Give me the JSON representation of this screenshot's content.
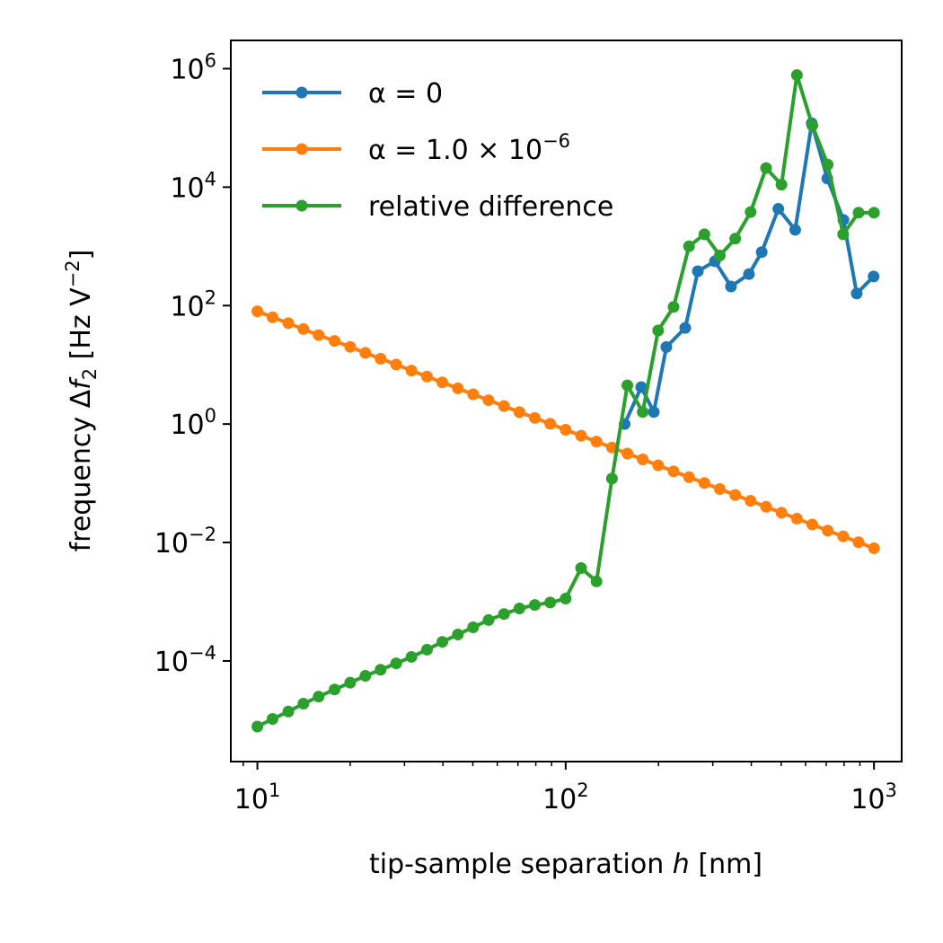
{
  "chart_data": {
    "type": "line",
    "xlabel_text": "tip-sample separation",
    "xlabel_var": "h",
    "xlabel_unit": "[nm]",
    "ylabel_text": "frequency Δ",
    "ylabel_var": "f",
    "ylabel_sub": "2",
    "ylabel_unit_a": "[Hz V",
    "ylabel_unit_sup": "−2",
    "ylabel_unit_b": "]",
    "xscale": "log",
    "yscale": "log",
    "xlim": [
      8.2,
      1230
    ],
    "ylim": [
      2e-06,
      3000000.0
    ],
    "grid": false,
    "legend_position": "upper-left",
    "x_ticks": [
      {
        "value": 10,
        "base": "10",
        "exp": "1"
      },
      {
        "value": 100,
        "base": "10",
        "exp": "2"
      },
      {
        "value": 1000,
        "base": "10",
        "exp": "3"
      }
    ],
    "y_ticks": [
      {
        "value": 0.0001,
        "base": "10",
        "exp": "−4"
      },
      {
        "value": 0.01,
        "base": "10",
        "exp": "−2"
      },
      {
        "value": 1,
        "base": "10",
        "exp": "0"
      },
      {
        "value": 100,
        "base": "10",
        "exp": "2"
      },
      {
        "value": 10000,
        "base": "10",
        "exp": "4"
      },
      {
        "value": 1000000,
        "base": "10",
        "exp": "6"
      }
    ],
    "series": [
      {
        "name_parts": [
          "α = 0"
        ],
        "name_sup": "",
        "color": "#1f77b4",
        "x": [
          155.3,
          175.8,
          193.1,
          212.1,
          244.2,
          268.3,
          304.9,
          343.7,
          393.1,
          432.4,
          489.5,
          555.2,
          628.3,
          705.8,
          795.9,
          879.1,
          997.4
        ],
        "y": [
          1.0,
          4.2,
          1.6,
          20,
          42,
          380,
          560,
          210,
          340,
          800,
          4300,
          1900,
          120000,
          14000,
          2800,
          160,
          310
        ]
      },
      {
        "name_parts": [
          "α = 1.0 × 10"
        ],
        "name_sup": "−6",
        "color": "#ff7f0e",
        "x": [
          10.0,
          11.2,
          12.6,
          14.1,
          15.8,
          17.8,
          20.0,
          22.4,
          25.1,
          28.2,
          31.6,
          35.5,
          39.8,
          44.7,
          50.1,
          56.2,
          63.1,
          70.8,
          79.4,
          89.1,
          100.0,
          112.2,
          125.9,
          141.3,
          158.5,
          177.8,
          199.5,
          223.9,
          251.2,
          281.8,
          316.2,
          354.8,
          398.1,
          446.7,
          501.2,
          562.3,
          631.0,
          707.9,
          794.3,
          891.3,
          1000.0
        ],
        "y": [
          80.0,
          63.5,
          50.5,
          40.1,
          31.8,
          25.3,
          20.1,
          15.9,
          12.7,
          10.1,
          8.0,
          6.35,
          5.05,
          4.01,
          3.18,
          2.53,
          2.01,
          1.59,
          1.27,
          1.01,
          0.8,
          0.635,
          0.505,
          0.401,
          0.318,
          0.253,
          0.201,
          0.159,
          0.127,
          0.101,
          0.08,
          0.0635,
          0.0505,
          0.0401,
          0.0318,
          0.0253,
          0.0201,
          0.0159,
          0.0127,
          0.0101,
          0.008
        ]
      },
      {
        "name_parts": [
          "relative difference"
        ],
        "name_sup": "",
        "color": "#2ca02c",
        "x": [
          10.0,
          11.2,
          12.6,
          14.1,
          15.8,
          17.8,
          20.0,
          22.4,
          25.1,
          28.2,
          31.6,
          35.5,
          39.8,
          44.7,
          50.1,
          56.2,
          63.1,
          70.8,
          79.4,
          89.1,
          100.0,
          112.2,
          125.9,
          141.3,
          158.5,
          177.8,
          199.5,
          223.9,
          251.2,
          281.8,
          316.2,
          354.8,
          398.1,
          446.7,
          501.2,
          562.3,
          631.0,
          707.9,
          794.3,
          891.3,
          1000.0
        ],
        "y": [
          7.8e-06,
          1.05e-05,
          1.4e-05,
          1.9e-05,
          2.5e-05,
          3.3e-05,
          4.3e-05,
          5.6e-05,
          7.1e-05,
          9.1e-05,
          0.000117,
          0.000155,
          0.00021,
          0.00028,
          0.00037,
          0.00049,
          0.00062,
          0.00077,
          0.00088,
          0.00097,
          0.00113,
          0.0037,
          0.0022,
          0.12,
          4.5,
          1.6,
          38,
          95,
          1000,
          1600,
          700,
          1350,
          3800,
          21000,
          11000,
          780000,
          110000,
          24000,
          1600,
          3700,
          3700
        ]
      }
    ]
  }
}
